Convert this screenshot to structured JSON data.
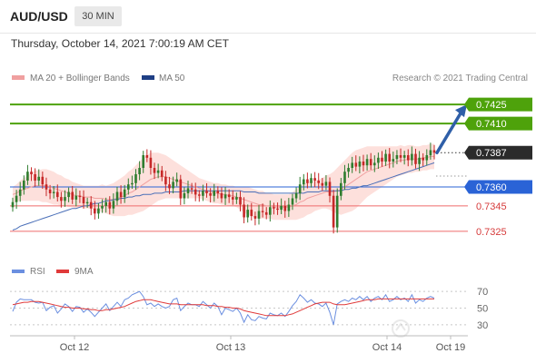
{
  "header": {
    "pair": "AUD/USD",
    "timeframe": "30 MIN",
    "datetime": "Thursday, October 14, 2021 7:00:19 AM CET"
  },
  "legend": {
    "ma20": "MA 20 + Bollinger Bands",
    "ma50": "MA 50",
    "credit": "Research © 2021 Trading Central",
    "rsi": "RSI",
    "rsi_ma": "9MA"
  },
  "colors": {
    "green_level": "#4ea20b",
    "blue_level": "#2a63d6",
    "red_level": "#ef6b6b",
    "bollinger_fill": "#fde0dc",
    "ma20": "#f0a0a0",
    "ma50": "#4a6fb8",
    "arrow": "#2f5fa8",
    "rsi_line": "#6b8fe0",
    "rsi_ma_line": "#e03a3a",
    "candle_up": "#2f7d2f",
    "candle_down": "#c62828"
  },
  "chart_data": [
    {
      "type": "candlestick",
      "ylim": [
        0.7307,
        0.7438
      ],
      "xlabels": [
        "Oct 12",
        "Oct 13",
        "Oct 14",
        "Oct 19"
      ],
      "levels": [
        {
          "name": "resistance-2",
          "value": 0.7425,
          "label": "0.7425",
          "style": "green"
        },
        {
          "name": "resistance-1",
          "value": 0.741,
          "label": "0.7410",
          "style": "green"
        },
        {
          "name": "last-price",
          "value": 0.7387,
          "label": "0.7387",
          "style": "last"
        },
        {
          "name": "pivot",
          "value": 0.736,
          "label": "0.7360",
          "style": "blue"
        },
        {
          "name": "support-1",
          "value": 0.7345,
          "label": "0.7345",
          "style": "red"
        },
        {
          "name": "support-2",
          "value": 0.7325,
          "label": "0.7325",
          "style": "red"
        }
      ],
      "close": [
        0.7348,
        0.7353,
        0.7358,
        0.7365,
        0.7372,
        0.737,
        0.7365,
        0.7368,
        0.7362,
        0.7358,
        0.7355,
        0.7356,
        0.7352,
        0.7349,
        0.7352,
        0.7356,
        0.735,
        0.7353,
        0.7352,
        0.7347,
        0.7348,
        0.7343,
        0.7339,
        0.7343,
        0.7345,
        0.7348,
        0.7343,
        0.7349,
        0.7356,
        0.7352,
        0.7358,
        0.7362,
        0.7363,
        0.737,
        0.7375,
        0.7385,
        0.7383,
        0.7375,
        0.7371,
        0.7373,
        0.7368,
        0.7362,
        0.7359,
        0.7364,
        0.7366,
        0.7351,
        0.7355,
        0.7359,
        0.7358,
        0.7354,
        0.7353,
        0.7357,
        0.7355,
        0.7353,
        0.7357,
        0.7355,
        0.7351,
        0.7354,
        0.7352,
        0.735,
        0.7352,
        0.7346,
        0.7336,
        0.7342,
        0.7337,
        0.7335,
        0.7341,
        0.734,
        0.7338,
        0.7344,
        0.7343,
        0.7342,
        0.7345,
        0.7341,
        0.7346,
        0.7351,
        0.7355,
        0.7362,
        0.7366,
        0.7363,
        0.7367,
        0.7365,
        0.7363,
        0.7361,
        0.7364,
        0.7353,
        0.7328,
        0.7353,
        0.7363,
        0.7372,
        0.7375,
        0.7379,
        0.7376,
        0.738,
        0.7377,
        0.7382,
        0.7377,
        0.7379,
        0.7383,
        0.738,
        0.7386,
        0.738,
        0.7382,
        0.7385,
        0.7383,
        0.7385,
        0.7381,
        0.7386,
        0.7378,
        0.7383,
        0.7381,
        0.7385,
        0.7389,
        0.7387
      ],
      "ma20": [
        0.7354,
        0.7355,
        0.7357,
        0.7358,
        0.7359,
        0.736,
        0.7361,
        0.7361,
        0.7361,
        0.7361,
        0.736,
        0.7359,
        0.7358,
        0.7357,
        0.7356,
        0.7355,
        0.7354,
        0.7353,
        0.7353,
        0.7352,
        0.7352,
        0.7352,
        0.7351,
        0.7351,
        0.7351,
        0.735,
        0.735,
        0.735,
        0.7351,
        0.7352,
        0.7353,
        0.7355,
        0.7356,
        0.7358,
        0.736,
        0.7362,
        0.7364,
        0.7366,
        0.7367,
        0.7368,
        0.7368,
        0.7368,
        0.7367,
        0.7366,
        0.7365,
        0.7364,
        0.7363,
        0.7362,
        0.7361,
        0.736,
        0.7359,
        0.7358,
        0.7357,
        0.7356,
        0.7355,
        0.7355,
        0.7354,
        0.7354,
        0.7353,
        0.7353,
        0.7352,
        0.7351,
        0.735,
        0.7349,
        0.7348,
        0.7347,
        0.7346,
        0.7346,
        0.7345,
        0.7345,
        0.7344,
        0.7344,
        0.7344,
        0.7344,
        0.7344,
        0.7345,
        0.7346,
        0.7348,
        0.7349,
        0.7351,
        0.7352,
        0.7353,
        0.7354,
        0.7355,
        0.7356,
        0.7356,
        0.7356,
        0.7357,
        0.7358,
        0.736,
        0.7362,
        0.7364,
        0.7366,
        0.7368,
        0.737,
        0.7372,
        0.7373,
        0.7374,
        0.7375,
        0.7376,
        0.7377,
        0.7378,
        0.7379,
        0.738,
        0.7381,
        0.7381,
        0.7382,
        0.7382,
        0.7382,
        0.7382,
        0.7383,
        0.7383,
        0.7384,
        0.7384
      ],
      "ma50": [
        0.7326,
        0.7327,
        0.7329,
        0.733,
        0.7331,
        0.7332,
        0.7333,
        0.7334,
        0.7335,
        0.7336,
        0.7337,
        0.7338,
        0.7339,
        0.734,
        0.7341,
        0.7342,
        0.7343,
        0.7343,
        0.7344,
        0.7345,
        0.7345,
        0.7346,
        0.7347,
        0.7347,
        0.7348,
        0.7349,
        0.7349,
        0.735,
        0.735,
        0.7351,
        0.7351,
        0.7352,
        0.7352,
        0.7353,
        0.7353,
        0.7354,
        0.7354,
        0.7354,
        0.7355,
        0.7355,
        0.7355,
        0.7356,
        0.7356,
        0.7356,
        0.7356,
        0.7356,
        0.7357,
        0.7357,
        0.7357,
        0.7357,
        0.7357,
        0.7357,
        0.7357,
        0.7357,
        0.7357,
        0.7357,
        0.7357,
        0.7357,
        0.7357,
        0.7357,
        0.7357,
        0.7357,
        0.7356,
        0.7356,
        0.7356,
        0.7356,
        0.7355,
        0.7355,
        0.7355,
        0.7355,
        0.7355,
        0.7355,
        0.7355,
        0.7355,
        0.7355,
        0.7355,
        0.7355,
        0.7355,
        0.7355,
        0.7356,
        0.7356,
        0.7356,
        0.7356,
        0.7357,
        0.7357,
        0.7357,
        0.7357,
        0.7357,
        0.7357,
        0.7358,
        0.7358,
        0.7359,
        0.7359,
        0.736,
        0.7361,
        0.7361,
        0.7362,
        0.7363,
        0.7364,
        0.7365,
        0.7366,
        0.7367,
        0.7368,
        0.7369,
        0.737,
        0.7371,
        0.7372,
        0.7373,
        0.7374,
        0.7375,
        0.7376,
        0.7377,
        0.7378,
        0.7379
      ],
      "band_width": [
        0.0006,
        0.0007,
        0.0008,
        0.0009,
        0.001,
        0.0011,
        0.0012,
        0.0012,
        0.0013,
        0.0013,
        0.0013,
        0.0013,
        0.0012,
        0.0012,
        0.0011,
        0.0011,
        0.001,
        0.001,
        0.0009,
        0.0009,
        0.0009,
        0.0009,
        0.001,
        0.001,
        0.0011,
        0.0011,
        0.0012,
        0.0013,
        0.0014,
        0.0015,
        0.0016,
        0.0017,
        0.0018,
        0.0019,
        0.002,
        0.0021,
        0.0021,
        0.0021,
        0.002,
        0.0019,
        0.0018,
        0.0017,
        0.0016,
        0.0015,
        0.0014,
        0.0013,
        0.0012,
        0.0011,
        0.001,
        0.0009,
        0.0008,
        0.0008,
        0.0008,
        0.0008,
        0.0008,
        0.0008,
        0.0008,
        0.0008,
        0.0008,
        0.0008,
        0.0008,
        0.0009,
        0.001,
        0.0011,
        0.0011,
        0.0011,
        0.0011,
        0.0011,
        0.001,
        0.001,
        0.001,
        0.001,
        0.001,
        0.001,
        0.001,
        0.0011,
        0.0012,
        0.0013,
        0.0013,
        0.0013,
        0.0013,
        0.0012,
        0.0012,
        0.0012,
        0.0013,
        0.0014,
        0.0016,
        0.0018,
        0.002,
        0.0021,
        0.0022,
        0.0023,
        0.0023,
        0.0022,
        0.0021,
        0.002,
        0.0019,
        0.0018,
        0.0017,
        0.0016,
        0.0015,
        0.0014,
        0.0013,
        0.0012,
        0.0012,
        0.0011,
        0.0011,
        0.0011,
        0.001,
        0.001,
        0.001,
        0.001,
        0.001,
        0.001
      ],
      "forecast": {
        "from": 0.7387,
        "to": 0.7425
      }
    },
    {
      "type": "line",
      "name": "RSI panel",
      "ylim": [
        20,
        80
      ],
      "ticks": [
        30,
        50,
        70
      ],
      "series": [
        {
          "name": "RSI",
          "values": [
            46,
            57,
            61,
            60,
            60,
            60,
            57,
            56,
            57,
            47,
            51,
            53,
            44,
            49,
            55,
            52,
            46,
            52,
            51,
            45,
            49,
            45,
            40,
            45,
            50,
            55,
            47,
            52,
            57,
            52,
            60,
            62,
            66,
            68,
            70,
            64,
            54,
            56,
            52,
            55,
            52,
            50,
            52,
            60,
            62,
            47,
            52,
            56,
            54,
            54,
            52,
            58,
            54,
            50,
            56,
            52,
            42,
            50,
            48,
            46,
            50,
            44,
            33,
            42,
            36,
            35,
            40,
            38,
            37,
            44,
            42,
            41,
            44,
            40,
            46,
            53,
            58,
            66,
            62,
            57,
            60,
            56,
            55,
            52,
            56,
            45,
            30,
            55,
            58,
            60,
            58,
            62,
            60,
            64,
            60,
            64,
            58,
            62,
            64,
            60,
            66,
            58,
            60,
            64,
            60,
            62,
            58,
            66,
            56,
            60,
            58,
            62,
            64,
            62
          ]
        },
        {
          "name": "9MA",
          "values": [
            54,
            55,
            56,
            57,
            57,
            58,
            58,
            58,
            57,
            56,
            55,
            54,
            53,
            52,
            51,
            51,
            50,
            50,
            50,
            49,
            49,
            48,
            48,
            47,
            47,
            48,
            48,
            49,
            50,
            51,
            52,
            54,
            56,
            58,
            59,
            60,
            60,
            60,
            59,
            58,
            57,
            56,
            55,
            55,
            55,
            54,
            54,
            54,
            54,
            54,
            54,
            54,
            53,
            53,
            53,
            52,
            52,
            51,
            51,
            50,
            50,
            49,
            47,
            46,
            45,
            44,
            43,
            42,
            41,
            41,
            41,
            41,
            41,
            41,
            42,
            43,
            45,
            47,
            49,
            51,
            53,
            55,
            56,
            57,
            57,
            57,
            55,
            54,
            54,
            54,
            55,
            56,
            57,
            58,
            59,
            60,
            60,
            60,
            61,
            61,
            61,
            61,
            61,
            61,
            61,
            61,
            61,
            61,
            61,
            61,
            61,
            61,
            61,
            61
          ]
        }
      ]
    }
  ]
}
